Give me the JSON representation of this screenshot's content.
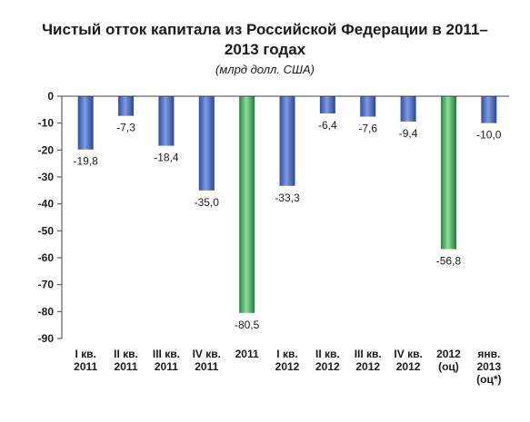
{
  "chart_data": {
    "type": "bar",
    "title": "Чистый отток капитала из Российской Федерации в 2011–2013 годах",
    "subtitle": "(млрд долл. США)",
    "categories": [
      [
        "I кв.",
        "2011"
      ],
      [
        "II кв.",
        "2011"
      ],
      [
        "III кв.",
        "2011"
      ],
      [
        "IV кв.",
        "2011"
      ],
      [
        "2011"
      ],
      [
        "I кв.",
        "2012"
      ],
      [
        "II кв.",
        "2012"
      ],
      [
        "III кв.",
        "2012"
      ],
      [
        "IV кв.",
        "2012"
      ],
      [
        "2012",
        "(оц)"
      ],
      [
        "янв.",
        "2013",
        "(оц*)"
      ]
    ],
    "values": [
      -19.8,
      -7.3,
      -18.4,
      -35.0,
      -80.5,
      -33.3,
      -6.4,
      -7.6,
      -9.4,
      -56.8,
      -10.0
    ],
    "value_labels": [
      "-19,8",
      "-7,3",
      "-18,4",
      "-35,0",
      "-80,5",
      "-33,3",
      "-6,4",
      "-7,6",
      "-9,4",
      "-56,8",
      "-10,0"
    ],
    "bar_kind": [
      "quarter",
      "quarter",
      "quarter",
      "quarter",
      "year",
      "quarter",
      "quarter",
      "quarter",
      "quarter",
      "year",
      "quarter"
    ],
    "ylim": [
      -90,
      0
    ],
    "yticks": [
      0,
      -10,
      -20,
      -30,
      -40,
      -50,
      -60,
      -70,
      -80,
      -90
    ],
    "grid": false,
    "colors": {
      "quarter": "#4a6bc4",
      "year": "#3fae5a"
    }
  }
}
